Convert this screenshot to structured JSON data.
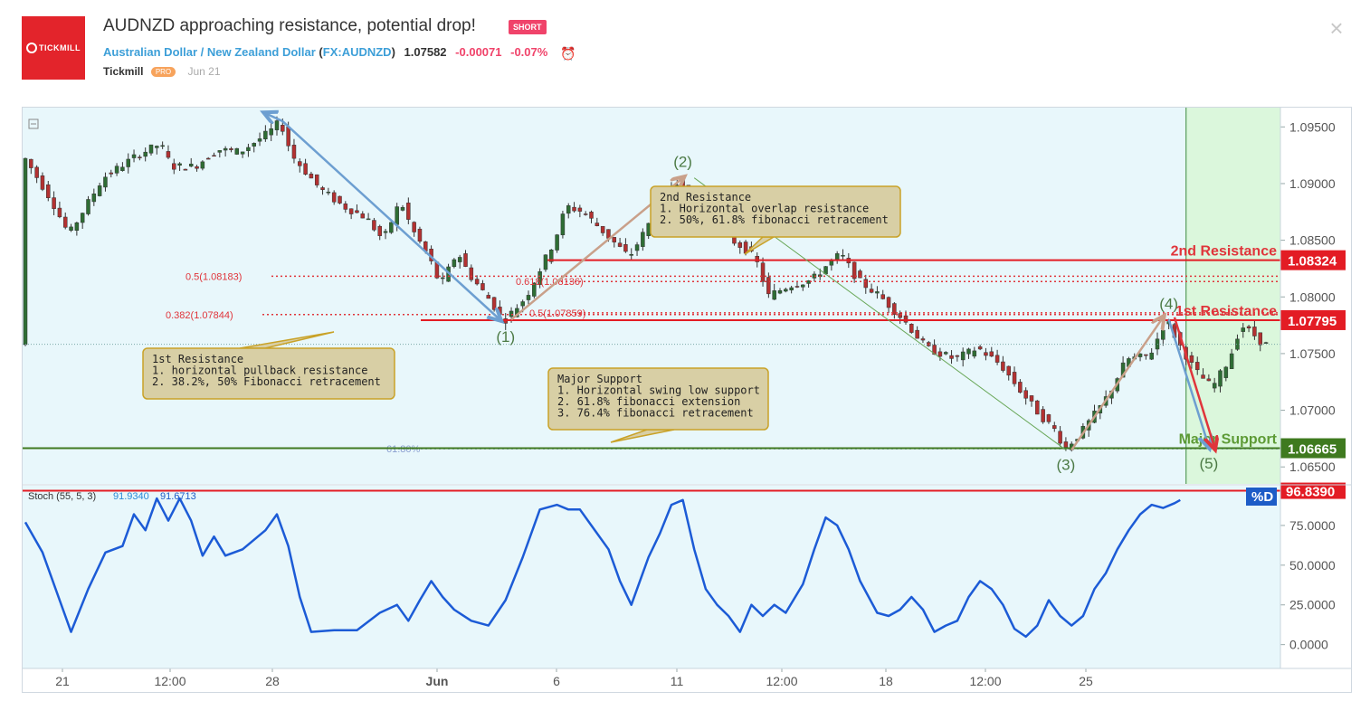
{
  "header": {
    "logo_text": "TICKMILL",
    "title": "AUDNZD approaching resistance, potential drop!",
    "badge": "SHORT",
    "pair_name": "Australian Dollar / New Zealand Dollar",
    "symbol_open": "(",
    "symbol": "FX:AUDNZD",
    "symbol_close": ")",
    "price": "1.07582",
    "change": "-0.00071",
    "change_pct": "-0.07%",
    "author": "Tickmill",
    "author_badge": "PRO",
    "date": "Jun 21",
    "close_icon": "×"
  },
  "colors": {
    "background": "#e8f7fb",
    "forecast_zone": "#dbf7dc",
    "resistance": "#e31c24",
    "support": "#3f7a1f",
    "stoch_line": "#1c5bd6",
    "candle_up": "#2e6d34",
    "candle_down": "#b33131"
  },
  "chart_data": [
    {
      "type": "candlestick",
      "symbol": "AUDNZD",
      "price_axis": {
        "ticks": [
          "1.09500",
          "1.09000",
          "1.08500",
          "1.08000",
          "1.07500",
          "1.07000",
          "1.06500"
        ],
        "ylim": [
          1.0635,
          1.0967
        ]
      },
      "time_axis": {
        "ticks": [
          "21",
          "12:00",
          "28",
          "Jun",
          "6",
          "11",
          "12:00",
          "18",
          "12:00",
          "25"
        ]
      },
      "price_path": [
        [
          0,
          1.0925
        ],
        [
          5,
          1.0885
        ],
        [
          8,
          1.0855
        ],
        [
          14,
          1.0905
        ],
        [
          20,
          1.0925
        ],
        [
          24,
          1.0935
        ],
        [
          26,
          1.0915
        ],
        [
          30,
          1.0915
        ],
        [
          34,
          1.093
        ],
        [
          38,
          1.0928
        ],
        [
          43,
          1.0945
        ],
        [
          45,
          1.0955
        ],
        [
          47,
          1.0925
        ],
        [
          52,
          1.0895
        ],
        [
          56,
          1.088
        ],
        [
          60,
          1.087
        ],
        [
          63,
          1.085
        ],
        [
          66,
          1.0885
        ],
        [
          68,
          1.086
        ],
        [
          71,
          1.0835
        ],
        [
          73,
          1.081
        ],
        [
          76,
          1.084
        ],
        [
          78,
          1.082
        ],
        [
          82,
          1.0795
        ],
        [
          84,
          1.0778
        ],
        [
          88,
          1.08
        ],
        [
          93,
          1.085
        ],
        [
          95,
          1.088
        ],
        [
          98,
          1.0875
        ],
        [
          103,
          1.085
        ],
        [
          106,
          1.0835
        ],
        [
          109,
          1.086
        ],
        [
          112,
          1.089
        ],
        [
          114,
          1.09
        ],
        [
          115,
          1.0905
        ],
        [
          117,
          1.088
        ],
        [
          120,
          1.0865
        ],
        [
          124,
          1.085
        ],
        [
          127,
          1.084
        ],
        [
          129,
          1.0825
        ],
        [
          130,
          1.08
        ],
        [
          134,
          1.081
        ],
        [
          138,
          1.0815
        ],
        [
          141,
          1.083
        ],
        [
          143,
          1.0838
        ],
        [
          146,
          1.0815
        ],
        [
          150,
          1.08
        ],
        [
          154,
          1.078
        ],
        [
          158,
          1.0755
        ],
        [
          163,
          1.0745
        ],
        [
          167,
          1.0755
        ],
        [
          171,
          1.074
        ],
        [
          174,
          1.072
        ],
        [
          178,
          1.0695
        ],
        [
          181,
          1.068
        ],
        [
          182,
          1.0665
        ],
        [
          185,
          1.068
        ],
        [
          188,
          1.07
        ],
        [
          190,
          1.0715
        ],
        [
          193,
          1.0745
        ],
        [
          197,
          1.0748
        ],
        [
          200,
          1.078
        ],
        [
          202,
          1.076
        ],
        [
          205,
          1.0735
        ],
        [
          208,
          1.072
        ],
        [
          211,
          1.0745
        ],
        [
          213,
          1.0775
        ],
        [
          215,
          1.0768
        ],
        [
          217,
          1.0758
        ]
      ],
      "current_price_level": 1.07582,
      "levels": [
        {
          "label": "2nd Resistance",
          "tag": "1.08324",
          "value": 1.08324,
          "style": "resistance"
        },
        {
          "label": "1st Resistance",
          "tag": "1.07795",
          "value": 1.07795,
          "style": "resistance"
        },
        {
          "label": "Major Support",
          "tag": "1.06665",
          "value": 1.06665,
          "style": "support"
        }
      ],
      "fib_levels": [
        {
          "label": "0.5(1.08183)",
          "value": 1.08183
        },
        {
          "label": "0.618(1.08136)",
          "value": 1.08136
        },
        {
          "label": "0.382(1.07844)",
          "value": 1.07844
        },
        {
          "label": "0.5(1.07859)",
          "value": 1.07859
        },
        {
          "label": "61.80%",
          "value": 1.0666
        }
      ],
      "wave_labels": [
        {
          "label": "(1)",
          "i": 84,
          "price": 1.0778,
          "pos": "below"
        },
        {
          "label": "(2)",
          "i": 115,
          "price": 1.0905,
          "pos": "above"
        },
        {
          "label": "(3)",
          "i": 182,
          "price": 1.0665,
          "pos": "below"
        },
        {
          "label": "(4)",
          "i": 200,
          "price": 1.078,
          "pos": "above"
        },
        {
          "label": "(5)",
          "i": 207,
          "price": 1.0666,
          "pos": "below"
        }
      ],
      "annotations": [
        {
          "name": "note-2nd-resistance",
          "lines": [
            "2nd Resistance",
            "1. Horizontal overlap resistance",
            "2. 50%, 61.8% fibonacci retracement"
          ]
        },
        {
          "name": "note-1st-resistance",
          "lines": [
            "1st Resistance",
            "1. horizontal pullback resistance",
            "2. 38.2%, 50% Fibonacci retracement"
          ]
        },
        {
          "name": "note-major-support",
          "lines": [
            "Major Support",
            "1. Horizontal swing low support",
            "2. 61.8% fibonacci extension",
            "3. 76.4% fibonacci retracement"
          ]
        }
      ]
    },
    {
      "type": "line",
      "indicator": "Stoch (55, 5, 3)",
      "values_text": [
        "91.9340",
        "91.6713"
      ],
      "overbought_tag": "96.8390",
      "series_tag": "%D",
      "y_ticks": [
        "75.0000",
        "50.0000",
        "25.0000",
        "0.0000"
      ],
      "ylim": [
        -15,
        100
      ],
      "points": [
        [
          0,
          77
        ],
        [
          3,
          58
        ],
        [
          6,
          28
        ],
        [
          8,
          8
        ],
        [
          11,
          35
        ],
        [
          14,
          58
        ],
        [
          17,
          62
        ],
        [
          19,
          82
        ],
        [
          21,
          72
        ],
        [
          23,
          92
        ],
        [
          25,
          78
        ],
        [
          27,
          92
        ],
        [
          29,
          78
        ],
        [
          31,
          56
        ],
        [
          33,
          68
        ],
        [
          35,
          56
        ],
        [
          38,
          60
        ],
        [
          42,
          72
        ],
        [
          44,
          82
        ],
        [
          46,
          62
        ],
        [
          48,
          30
        ],
        [
          50,
          8
        ],
        [
          54,
          9
        ],
        [
          58,
          9
        ],
        [
          62,
          20
        ],
        [
          65,
          25
        ],
        [
          67,
          15
        ],
        [
          69,
          28
        ],
        [
          71,
          40
        ],
        [
          73,
          30
        ],
        [
          75,
          22
        ],
        [
          78,
          15
        ],
        [
          81,
          12
        ],
        [
          84,
          28
        ],
        [
          87,
          55
        ],
        [
          90,
          85
        ],
        [
          93,
          88
        ],
        [
          95,
          85
        ],
        [
          97,
          85
        ],
        [
          99,
          75
        ],
        [
          102,
          60
        ],
        [
          104,
          40
        ],
        [
          106,
          25
        ],
        [
          109,
          55
        ],
        [
          111,
          70
        ],
        [
          113,
          88
        ],
        [
          115,
          91
        ],
        [
          117,
          60
        ],
        [
          119,
          35
        ],
        [
          121,
          25
        ],
        [
          123,
          18
        ],
        [
          125,
          8
        ],
        [
          127,
          25
        ],
        [
          129,
          18
        ],
        [
          131,
          25
        ],
        [
          133,
          20
        ],
        [
          136,
          38
        ],
        [
          138,
          60
        ],
        [
          140,
          80
        ],
        [
          142,
          75
        ],
        [
          144,
          60
        ],
        [
          146,
          40
        ],
        [
          149,
          20
        ],
        [
          151,
          18
        ],
        [
          153,
          22
        ],
        [
          155,
          30
        ],
        [
          157,
          22
        ],
        [
          159,
          8
        ],
        [
          161,
          12
        ],
        [
          163,
          15
        ],
        [
          165,
          30
        ],
        [
          167,
          40
        ],
        [
          169,
          35
        ],
        [
          171,
          25
        ],
        [
          173,
          10
        ],
        [
          175,
          5
        ],
        [
          177,
          12
        ],
        [
          179,
          28
        ],
        [
          181,
          18
        ],
        [
          183,
          12
        ],
        [
          185,
          18
        ],
        [
          187,
          35
        ],
        [
          189,
          45
        ],
        [
          191,
          60
        ],
        [
          193,
          72
        ],
        [
          195,
          82
        ],
        [
          197,
          88
        ],
        [
          199,
          86
        ],
        [
          201,
          89
        ],
        [
          202,
          91
        ]
      ]
    }
  ]
}
